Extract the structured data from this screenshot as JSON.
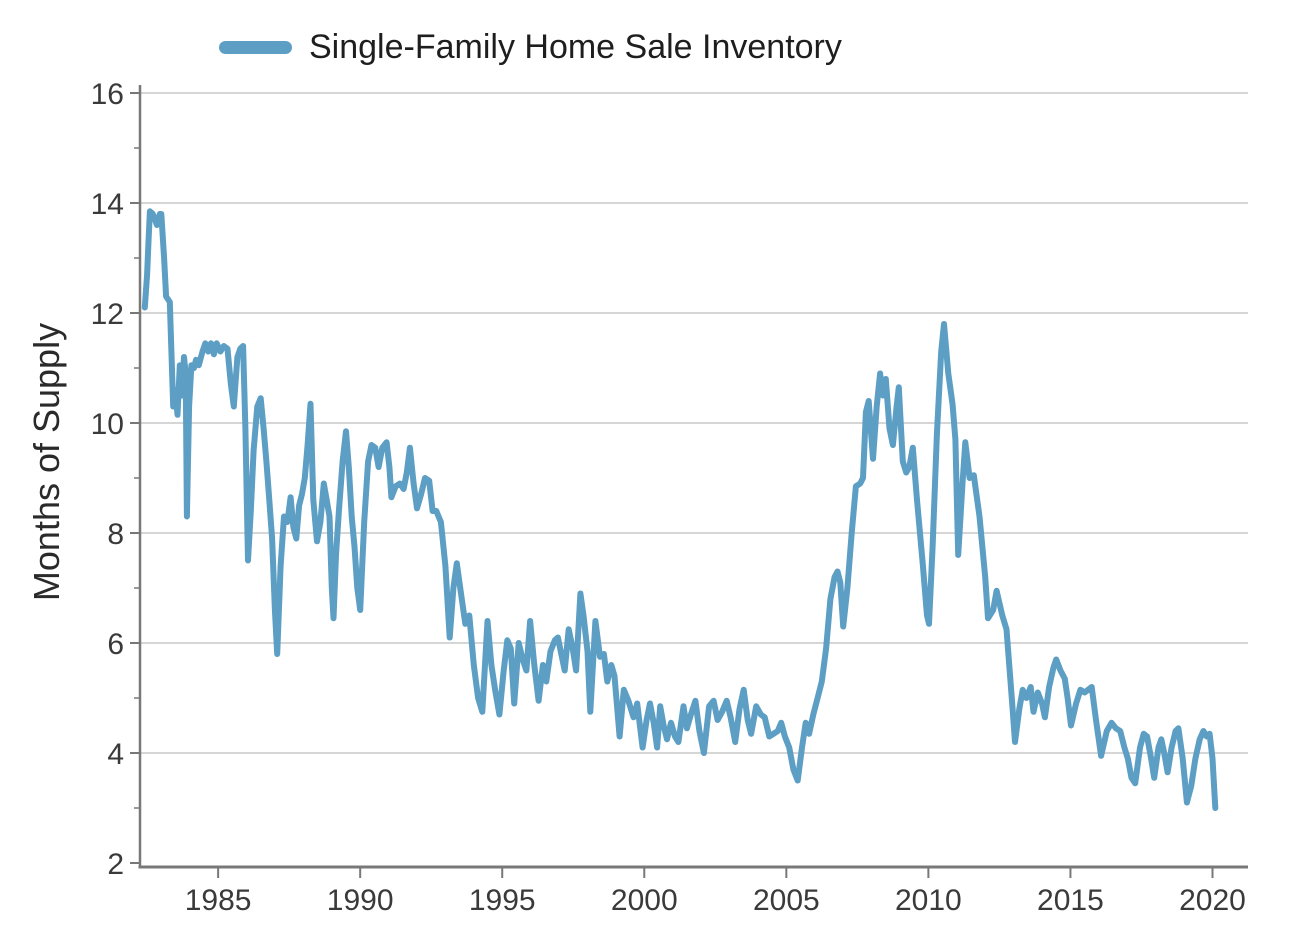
{
  "page": {
    "background": "#ffffff"
  },
  "chart_data": {
    "type": "line",
    "title": "",
    "legend_label": "Single-Family Home Sale Inventory",
    "legend_position": "top-left",
    "ylabel": "Months of Supply",
    "xlabel": "",
    "xlim": [
      1982.25,
      2021.25
    ],
    "ylim": [
      2,
      16
    ],
    "x_ticks": [
      1985,
      1990,
      1995,
      2000,
      2005,
      2010,
      2015,
      2020
    ],
    "y_major_ticks": [
      2,
      4,
      6,
      8,
      10,
      12,
      14,
      16
    ],
    "y_minor_ticks": [
      3,
      5,
      7,
      9,
      11,
      13,
      15
    ],
    "grid": "horizontal-only",
    "line_color": "#5d9ec4",
    "grid_color": "#c9c9c9",
    "axis_color": "#787878",
    "tick_label_color": "#3a3a3a",
    "series": [
      {
        "name": "Single-Family Home Sale Inventory",
        "color": "#5d9ec4",
        "points": [
          [
            1982.42,
            12.1
          ],
          [
            1982.5,
            12.7
          ],
          [
            1982.55,
            13.3
          ],
          [
            1982.6,
            13.85
          ],
          [
            1982.7,
            13.8
          ],
          [
            1982.85,
            13.6
          ],
          [
            1982.95,
            13.8
          ],
          [
            1983.0,
            13.8
          ],
          [
            1983.1,
            13.0
          ],
          [
            1983.17,
            12.3
          ],
          [
            1983.3,
            12.2
          ],
          [
            1983.42,
            10.3
          ],
          [
            1983.5,
            10.6
          ],
          [
            1983.57,
            10.15
          ],
          [
            1983.65,
            11.05
          ],
          [
            1983.72,
            10.5
          ],
          [
            1983.8,
            11.2
          ],
          [
            1983.86,
            10.9
          ],
          [
            1983.9,
            8.3
          ],
          [
            1983.98,
            10.3
          ],
          [
            1984.06,
            11.05
          ],
          [
            1984.15,
            11.0
          ],
          [
            1984.22,
            11.15
          ],
          [
            1984.32,
            11.05
          ],
          [
            1984.45,
            11.3
          ],
          [
            1984.55,
            11.45
          ],
          [
            1984.65,
            11.3
          ],
          [
            1984.75,
            11.45
          ],
          [
            1984.85,
            11.25
          ],
          [
            1984.95,
            11.45
          ],
          [
            1985.08,
            11.3
          ],
          [
            1985.2,
            11.4
          ],
          [
            1985.33,
            11.35
          ],
          [
            1985.45,
            10.7
          ],
          [
            1985.55,
            10.3
          ],
          [
            1985.68,
            11.2
          ],
          [
            1985.78,
            11.35
          ],
          [
            1985.88,
            11.4
          ],
          [
            1985.96,
            9.9
          ],
          [
            1986.05,
            7.5
          ],
          [
            1986.15,
            8.4
          ],
          [
            1986.25,
            9.5
          ],
          [
            1986.38,
            10.3
          ],
          [
            1986.5,
            10.45
          ],
          [
            1986.6,
            9.9
          ],
          [
            1986.7,
            9.3
          ],
          [
            1986.8,
            8.6
          ],
          [
            1986.9,
            7.9
          ],
          [
            1987.0,
            6.6
          ],
          [
            1987.08,
            5.8
          ],
          [
            1987.2,
            7.4
          ],
          [
            1987.32,
            8.3
          ],
          [
            1987.44,
            8.2
          ],
          [
            1987.55,
            8.65
          ],
          [
            1987.65,
            8.1
          ],
          [
            1987.75,
            7.9
          ],
          [
            1987.85,
            8.5
          ],
          [
            1987.95,
            8.7
          ],
          [
            1988.05,
            9.0
          ],
          [
            1988.15,
            9.6
          ],
          [
            1988.25,
            10.35
          ],
          [
            1988.35,
            8.6
          ],
          [
            1988.48,
            7.85
          ],
          [
            1988.6,
            8.2
          ],
          [
            1988.72,
            8.9
          ],
          [
            1988.82,
            8.6
          ],
          [
            1988.92,
            8.3
          ],
          [
            1989.0,
            7.0
          ],
          [
            1989.06,
            6.45
          ],
          [
            1989.15,
            7.6
          ],
          [
            1989.25,
            8.4
          ],
          [
            1989.38,
            9.3
          ],
          [
            1989.5,
            9.85
          ],
          [
            1989.6,
            9.2
          ],
          [
            1989.7,
            8.3
          ],
          [
            1989.8,
            7.75
          ],
          [
            1989.9,
            7.0
          ],
          [
            1990.0,
            6.6
          ],
          [
            1990.14,
            8.2
          ],
          [
            1990.28,
            9.3
          ],
          [
            1990.4,
            9.6
          ],
          [
            1990.53,
            9.55
          ],
          [
            1990.65,
            9.2
          ],
          [
            1990.78,
            9.55
          ],
          [
            1990.93,
            9.65
          ],
          [
            1991.03,
            9.2
          ],
          [
            1991.1,
            8.65
          ],
          [
            1991.25,
            8.85
          ],
          [
            1991.4,
            8.9
          ],
          [
            1991.53,
            8.8
          ],
          [
            1991.64,
            9.1
          ],
          [
            1991.75,
            9.55
          ],
          [
            1991.88,
            8.9
          ],
          [
            1992.0,
            8.45
          ],
          [
            1992.14,
            8.7
          ],
          [
            1992.28,
            9.0
          ],
          [
            1992.43,
            8.95
          ],
          [
            1992.55,
            8.4
          ],
          [
            1992.68,
            8.4
          ],
          [
            1992.84,
            8.2
          ],
          [
            1993.0,
            7.4
          ],
          [
            1993.15,
            6.1
          ],
          [
            1993.28,
            7.0
          ],
          [
            1993.4,
            7.45
          ],
          [
            1993.55,
            6.9
          ],
          [
            1993.7,
            6.35
          ],
          [
            1993.84,
            6.5
          ],
          [
            1994.0,
            5.6
          ],
          [
            1994.15,
            5.0
          ],
          [
            1994.3,
            4.75
          ],
          [
            1994.48,
            6.4
          ],
          [
            1994.62,
            5.6
          ],
          [
            1994.75,
            5.15
          ],
          [
            1994.9,
            4.7
          ],
          [
            1995.05,
            5.5
          ],
          [
            1995.18,
            6.05
          ],
          [
            1995.3,
            5.9
          ],
          [
            1995.42,
            4.9
          ],
          [
            1995.58,
            6.0
          ],
          [
            1995.72,
            5.7
          ],
          [
            1995.85,
            5.5
          ],
          [
            1995.98,
            6.4
          ],
          [
            1996.13,
            5.6
          ],
          [
            1996.28,
            4.95
          ],
          [
            1996.43,
            5.6
          ],
          [
            1996.55,
            5.3
          ],
          [
            1996.7,
            5.85
          ],
          [
            1996.85,
            6.05
          ],
          [
            1996.96,
            6.1
          ],
          [
            1997.08,
            5.8
          ],
          [
            1997.2,
            5.5
          ],
          [
            1997.34,
            6.25
          ],
          [
            1997.48,
            5.9
          ],
          [
            1997.6,
            5.5
          ],
          [
            1997.75,
            6.9
          ],
          [
            1997.86,
            6.5
          ],
          [
            1998.0,
            5.85
          ],
          [
            1998.1,
            4.75
          ],
          [
            1998.28,
            6.4
          ],
          [
            1998.44,
            5.75
          ],
          [
            1998.58,
            5.8
          ],
          [
            1998.7,
            5.3
          ],
          [
            1998.84,
            5.6
          ],
          [
            1998.95,
            5.4
          ],
          [
            1999.13,
            4.3
          ],
          [
            1999.28,
            5.15
          ],
          [
            1999.44,
            4.95
          ],
          [
            1999.62,
            4.65
          ],
          [
            1999.75,
            4.9
          ],
          [
            1999.94,
            4.1
          ],
          [
            2000.08,
            4.6
          ],
          [
            2000.2,
            4.9
          ],
          [
            2000.33,
            4.55
          ],
          [
            2000.45,
            4.1
          ],
          [
            2000.56,
            4.85
          ],
          [
            2000.68,
            4.5
          ],
          [
            2000.8,
            4.25
          ],
          [
            2000.94,
            4.55
          ],
          [
            2001.08,
            4.3
          ],
          [
            2001.2,
            4.2
          ],
          [
            2001.38,
            4.85
          ],
          [
            2001.5,
            4.45
          ],
          [
            2001.64,
            4.7
          ],
          [
            2001.8,
            4.95
          ],
          [
            2001.94,
            4.4
          ],
          [
            2002.1,
            4.0
          ],
          [
            2002.28,
            4.85
          ],
          [
            2002.44,
            4.95
          ],
          [
            2002.58,
            4.6
          ],
          [
            2002.74,
            4.75
          ],
          [
            2002.9,
            4.95
          ],
          [
            2003.04,
            4.65
          ],
          [
            2003.2,
            4.2
          ],
          [
            2003.35,
            4.8
          ],
          [
            2003.5,
            5.15
          ],
          [
            2003.64,
            4.6
          ],
          [
            2003.76,
            4.35
          ],
          [
            2003.94,
            4.85
          ],
          [
            2004.1,
            4.7
          ],
          [
            2004.24,
            4.65
          ],
          [
            2004.4,
            4.3
          ],
          [
            2004.55,
            4.35
          ],
          [
            2004.7,
            4.4
          ],
          [
            2004.82,
            4.55
          ],
          [
            2004.95,
            4.3
          ],
          [
            2005.1,
            4.1
          ],
          [
            2005.25,
            3.7
          ],
          [
            2005.4,
            3.5
          ],
          [
            2005.55,
            4.1
          ],
          [
            2005.68,
            4.55
          ],
          [
            2005.8,
            4.35
          ],
          [
            2005.95,
            4.7
          ],
          [
            2006.1,
            5.0
          ],
          [
            2006.25,
            5.3
          ],
          [
            2006.4,
            5.9
          ],
          [
            2006.55,
            6.8
          ],
          [
            2006.7,
            7.2
          ],
          [
            2006.8,
            7.3
          ],
          [
            2006.9,
            7.1
          ],
          [
            2007.0,
            6.3
          ],
          [
            2007.15,
            7.0
          ],
          [
            2007.3,
            8.0
          ],
          [
            2007.45,
            8.85
          ],
          [
            2007.6,
            8.9
          ],
          [
            2007.7,
            9.0
          ],
          [
            2007.8,
            10.2
          ],
          [
            2007.9,
            10.4
          ],
          [
            2008.05,
            9.35
          ],
          [
            2008.18,
            10.3
          ],
          [
            2008.3,
            10.9
          ],
          [
            2008.4,
            10.5
          ],
          [
            2008.5,
            10.8
          ],
          [
            2008.63,
            9.9
          ],
          [
            2008.75,
            9.6
          ],
          [
            2008.88,
            10.3
          ],
          [
            2008.96,
            10.65
          ],
          [
            2009.1,
            9.3
          ],
          [
            2009.22,
            9.1
          ],
          [
            2009.33,
            9.2
          ],
          [
            2009.45,
            9.55
          ],
          [
            2009.6,
            8.6
          ],
          [
            2009.8,
            7.45
          ],
          [
            2009.95,
            6.5
          ],
          [
            2010.02,
            6.35
          ],
          [
            2010.15,
            7.75
          ],
          [
            2010.3,
            9.8
          ],
          [
            2010.45,
            11.3
          ],
          [
            2010.55,
            11.8
          ],
          [
            2010.7,
            10.9
          ],
          [
            2010.85,
            10.35
          ],
          [
            2010.95,
            9.7
          ],
          [
            2011.05,
            7.6
          ],
          [
            2011.2,
            8.9
          ],
          [
            2011.3,
            9.65
          ],
          [
            2011.45,
            9.0
          ],
          [
            2011.6,
            9.05
          ],
          [
            2011.8,
            8.3
          ],
          [
            2012.0,
            7.2
          ],
          [
            2012.1,
            6.45
          ],
          [
            2012.28,
            6.6
          ],
          [
            2012.4,
            6.95
          ],
          [
            2012.6,
            6.5
          ],
          [
            2012.75,
            6.25
          ],
          [
            2012.95,
            4.9
          ],
          [
            2013.05,
            4.2
          ],
          [
            2013.2,
            4.8
          ],
          [
            2013.32,
            5.15
          ],
          [
            2013.45,
            5.0
          ],
          [
            2013.6,
            5.2
          ],
          [
            2013.7,
            4.75
          ],
          [
            2013.85,
            5.1
          ],
          [
            2014.0,
            4.9
          ],
          [
            2014.1,
            4.65
          ],
          [
            2014.25,
            5.2
          ],
          [
            2014.4,
            5.55
          ],
          [
            2014.5,
            5.7
          ],
          [
            2014.65,
            5.5
          ],
          [
            2014.8,
            5.35
          ],
          [
            2014.9,
            5.0
          ],
          [
            2015.02,
            4.5
          ],
          [
            2015.2,
            4.9
          ],
          [
            2015.35,
            5.15
          ],
          [
            2015.5,
            5.1
          ],
          [
            2015.62,
            5.15
          ],
          [
            2015.75,
            5.2
          ],
          [
            2015.9,
            4.6
          ],
          [
            2016.08,
            3.95
          ],
          [
            2016.28,
            4.4
          ],
          [
            2016.45,
            4.55
          ],
          [
            2016.6,
            4.45
          ],
          [
            2016.75,
            4.4
          ],
          [
            2016.9,
            4.1
          ],
          [
            2017.02,
            3.9
          ],
          [
            2017.15,
            3.55
          ],
          [
            2017.28,
            3.45
          ],
          [
            2017.45,
            4.1
          ],
          [
            2017.58,
            4.35
          ],
          [
            2017.7,
            4.3
          ],
          [
            2017.84,
            3.9
          ],
          [
            2017.95,
            3.55
          ],
          [
            2018.1,
            4.1
          ],
          [
            2018.2,
            4.25
          ],
          [
            2018.3,
            4.0
          ],
          [
            2018.42,
            3.65
          ],
          [
            2018.56,
            4.1
          ],
          [
            2018.7,
            4.4
          ],
          [
            2018.8,
            4.45
          ],
          [
            2018.95,
            3.9
          ],
          [
            2019.1,
            3.1
          ],
          [
            2019.25,
            3.4
          ],
          [
            2019.4,
            3.9
          ],
          [
            2019.55,
            4.25
          ],
          [
            2019.68,
            4.4
          ],
          [
            2019.8,
            4.3
          ],
          [
            2019.9,
            4.35
          ],
          [
            2020.0,
            3.9
          ],
          [
            2020.1,
            3.0
          ]
        ]
      }
    ]
  }
}
